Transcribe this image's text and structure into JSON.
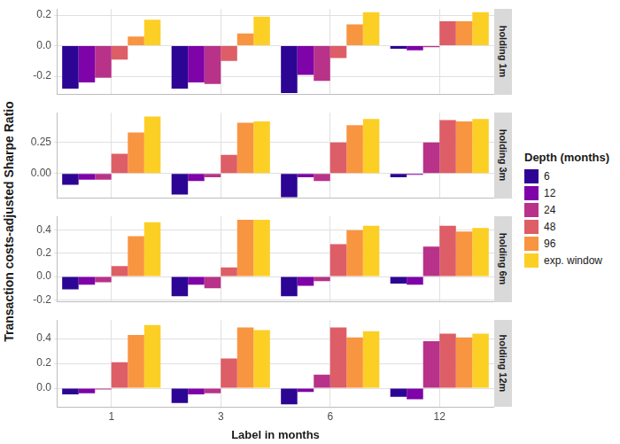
{
  "chart_data": [
    {
      "type": "bar",
      "title": "holding 1m",
      "categories": [
        "1",
        "3",
        "6",
        "12"
      ],
      "series": [
        {
          "name": "6",
          "color": "#2d0594",
          "values": [
            -0.28,
            -0.28,
            -0.31,
            -0.02
          ]
        },
        {
          "name": "12",
          "color": "#7e03a8",
          "values": [
            -0.24,
            -0.24,
            -0.19,
            -0.03
          ]
        },
        {
          "name": "24",
          "color": "#b83289",
          "values": [
            -0.21,
            -0.25,
            -0.23,
            -0.01
          ]
        },
        {
          "name": "48",
          "color": "#dd5e66",
          "values": [
            -0.09,
            -0.1,
            -0.08,
            0.16
          ]
        },
        {
          "name": "96",
          "color": "#f89540",
          "values": [
            0.06,
            0.08,
            0.14,
            0.16
          ]
        },
        {
          "name": "exp. window",
          "color": "#fccf25",
          "values": [
            0.17,
            0.19,
            0.22,
            0.22
          ]
        }
      ],
      "ylim": [
        -0.32,
        0.24
      ],
      "yticks": [
        -0.2,
        {
          "value": 0,
          "label": "0.0"
        },
        0.2
      ],
      "grid": true,
      "tick_labels": "y"
    },
    {
      "type": "bar",
      "title": "holding 3m",
      "categories": [
        "1",
        "3",
        "6",
        "12"
      ],
      "series": [
        {
          "name": "6",
          "color": "#2d0594",
          "values": [
            -0.09,
            -0.17,
            -0.19,
            -0.03
          ]
        },
        {
          "name": "12",
          "color": "#7e03a8",
          "values": [
            -0.05,
            -0.06,
            -0.03,
            -0.01
          ]
        },
        {
          "name": "24",
          "color": "#b83289",
          "values": [
            -0.05,
            -0.03,
            -0.06,
            0.25
          ]
        },
        {
          "name": "48",
          "color": "#dd5e66",
          "values": [
            0.16,
            0.15,
            0.25,
            0.43
          ]
        },
        {
          "name": "96",
          "color": "#f89540",
          "values": [
            0.33,
            0.41,
            0.39,
            0.42
          ]
        },
        {
          "name": "exp. window",
          "color": "#fccf25",
          "values": [
            0.46,
            0.42,
            0.44,
            0.44
          ]
        }
      ],
      "ylim": [
        -0.2,
        0.49
      ],
      "yticks": [
        {
          "value": 0,
          "label": "0.00"
        },
        0.25
      ],
      "grid": true,
      "tick_labels": "y"
    },
    {
      "type": "bar",
      "title": "holding 6m",
      "categories": [
        "1",
        "3",
        "6",
        "12"
      ],
      "series": [
        {
          "name": "6",
          "color": "#2d0594",
          "values": [
            -0.11,
            -0.17,
            -0.17,
            -0.06
          ]
        },
        {
          "name": "12",
          "color": "#7e03a8",
          "values": [
            -0.07,
            -0.07,
            -0.08,
            -0.07
          ]
        },
        {
          "name": "24",
          "color": "#b83289",
          "values": [
            -0.05,
            -0.1,
            -0.04,
            0.26
          ]
        },
        {
          "name": "48",
          "color": "#dd5e66",
          "values": [
            0.09,
            0.08,
            0.28,
            0.44
          ]
        },
        {
          "name": "96",
          "color": "#f89540",
          "values": [
            0.35,
            0.49,
            0.4,
            0.39
          ]
        },
        {
          "name": "exp. window",
          "color": "#fccf25",
          "values": [
            0.47,
            0.49,
            0.44,
            0.42
          ]
        }
      ],
      "ylim": [
        -0.22,
        0.52
      ],
      "yticks": [
        -0.2,
        {
          "value": 0,
          "label": "0.0"
        },
        0.2,
        0.4
      ],
      "grid": true,
      "tick_labels": "y"
    },
    {
      "type": "bar",
      "title": "holding 12m",
      "categories": [
        "1",
        "3",
        "6",
        "12"
      ],
      "x_label": "Label in months",
      "series": [
        {
          "name": "6",
          "color": "#2d0594",
          "values": [
            -0.05,
            -0.12,
            -0.13,
            -0.07
          ]
        },
        {
          "name": "12",
          "color": "#7e03a8",
          "values": [
            -0.04,
            -0.05,
            -0.03,
            -0.09
          ]
        },
        {
          "name": "24",
          "color": "#b83289",
          "values": [
            -0.01,
            -0.04,
            0.11,
            0.38
          ]
        },
        {
          "name": "48",
          "color": "#dd5e66",
          "values": [
            0.21,
            0.24,
            0.49,
            0.44
          ]
        },
        {
          "name": "96",
          "color": "#f89540",
          "values": [
            0.43,
            0.49,
            0.41,
            0.41
          ]
        },
        {
          "name": "exp. window",
          "color": "#fccf25",
          "values": [
            0.51,
            0.47,
            0.46,
            0.44
          ]
        }
      ],
      "ylim": [
        -0.15,
        0.55
      ],
      "yticks": [
        {
          "value": 0,
          "label": "0.0"
        },
        0.2,
        0.4
      ],
      "grid": true
    }
  ],
  "y_label": "Transaction costs-adjusted Sharpe Ratio",
  "legend_title": "Depth (months)"
}
